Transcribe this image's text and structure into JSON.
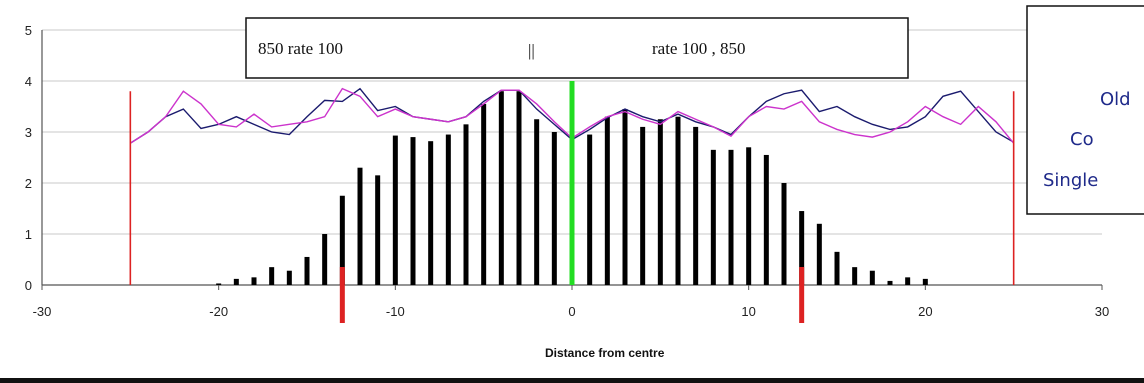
{
  "chart_data": {
    "type": "bar",
    "xlabel": "Distance from centre",
    "ylabel": "",
    "xlim": [
      -30,
      30
    ],
    "ylim": [
      0,
      5
    ],
    "x_ticks": [
      -30,
      -20,
      -10,
      0,
      10,
      20,
      30
    ],
    "y_ticks": [
      0,
      1,
      2,
      3,
      4,
      5
    ],
    "grid": true,
    "colors": {
      "bars": "#000000",
      "line1": "#1b1b6e",
      "line2": "#cc33cc",
      "edge_lines": "#dd2222",
      "centre_line": "#22dd22",
      "marks": "#dd2222"
    },
    "bars": {
      "x": [
        -20,
        -19,
        -18,
        -17,
        -16,
        -15,
        -14,
        -13,
        -12,
        -11,
        -10,
        -9,
        -8,
        -7,
        -6,
        -5,
        -4,
        -3,
        -2,
        -1,
        0,
        1,
        2,
        3,
        4,
        5,
        6,
        7,
        8,
        9,
        10,
        11,
        12,
        13,
        14,
        15,
        16,
        17,
        18,
        19,
        20
      ],
      "values": [
        0.03,
        0.12,
        0.15,
        0.35,
        0.28,
        0.55,
        1.0,
        1.75,
        2.3,
        2.15,
        2.93,
        2.9,
        2.82,
        2.95,
        3.15,
        3.55,
        3.8,
        3.8,
        3.25,
        3.0,
        2.9,
        2.95,
        3.3,
        3.45,
        3.1,
        3.25,
        3.3,
        3.1,
        2.65,
        2.65,
        2.7,
        2.55,
        2.0,
        1.45,
        1.2,
        0.65,
        0.35,
        0.28,
        0.08,
        0.15,
        0.12
      ]
    },
    "series": [
      {
        "x": [
          -25,
          -24,
          -23,
          -22,
          -21,
          -20,
          -19,
          -18,
          -17,
          -16,
          -15,
          -14,
          -13,
          -12,
          -11,
          -10,
          -9,
          -8,
          -7,
          -6,
          -5,
          -4,
          -3,
          -2,
          -1,
          0,
          1,
          2,
          3,
          4,
          5,
          6,
          7,
          8,
          9,
          10,
          11,
          12,
          13,
          14,
          15,
          16,
          17,
          18,
          19,
          20,
          21,
          22,
          23,
          24,
          25
        ],
        "values": [
          2.78,
          3.0,
          3.3,
          3.45,
          3.07,
          3.15,
          3.3,
          3.15,
          3.0,
          2.95,
          3.3,
          3.62,
          3.6,
          3.85,
          3.42,
          3.5,
          3.3,
          3.25,
          3.2,
          3.3,
          3.6,
          3.82,
          3.82,
          3.45,
          3.15,
          2.85,
          3.05,
          3.28,
          3.45,
          3.3,
          3.2,
          3.35,
          3.2,
          3.1,
          2.95,
          3.3,
          3.6,
          3.75,
          3.82,
          3.4,
          3.5,
          3.3,
          3.15,
          3.05,
          3.1,
          3.3,
          3.7,
          3.8,
          3.4,
          3.0,
          2.8
        ]
      },
      {
        "x": [
          -25,
          -24,
          -23,
          -22,
          -21,
          -20,
          -19,
          -18,
          -17,
          -16,
          -15,
          -14,
          -13,
          -12,
          -11,
          -10,
          -9,
          -8,
          -7,
          -6,
          -5,
          -4,
          -3,
          -2,
          -1,
          0,
          1,
          2,
          3,
          4,
          5,
          6,
          7,
          8,
          9,
          10,
          11,
          12,
          13,
          14,
          15,
          16,
          17,
          18,
          19,
          20,
          21,
          22,
          23,
          24,
          25
        ],
        "values": [
          2.78,
          3.0,
          3.3,
          3.8,
          3.55,
          3.15,
          3.1,
          3.35,
          3.1,
          3.15,
          3.2,
          3.3,
          3.85,
          3.7,
          3.3,
          3.45,
          3.3,
          3.25,
          3.2,
          3.3,
          3.55,
          3.82,
          3.82,
          3.55,
          3.2,
          2.88,
          3.1,
          3.3,
          3.4,
          3.25,
          3.15,
          3.4,
          3.25,
          3.1,
          2.92,
          3.3,
          3.5,
          3.45,
          3.6,
          3.2,
          3.05,
          2.95,
          2.9,
          3.0,
          3.2,
          3.5,
          3.3,
          3.15,
          3.5,
          3.2,
          2.78
        ]
      }
    ],
    "vertical_lines": [
      -25,
      25
    ],
    "centre_line": 0,
    "marks": [
      -13,
      13
    ],
    "annotation": {
      "left": "850   rate 100",
      "sep": "||",
      "right": "rate 100 ,  850"
    },
    "note_lines": [
      "Old",
      "Co",
      "Single"
    ]
  }
}
